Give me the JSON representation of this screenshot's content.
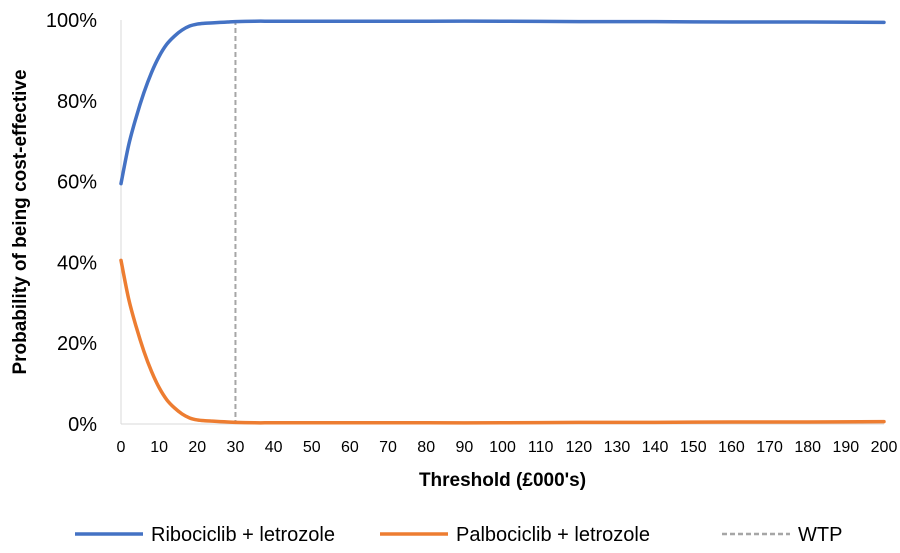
{
  "chart_data": {
    "type": "line",
    "xlabel": "Threshold (£000's)",
    "ylabel": "Probability of being cost-effective",
    "xlim": [
      0,
      200
    ],
    "ylim": [
      0,
      100
    ],
    "x_ticks": [
      0,
      10,
      20,
      30,
      40,
      50,
      60,
      70,
      80,
      90,
      100,
      110,
      120,
      130,
      140,
      150,
      160,
      170,
      180,
      190,
      200
    ],
    "x_tick_labels": [
      "0",
      "10",
      "20",
      "30",
      "40",
      "50",
      "60",
      "70",
      "80",
      "90",
      "100",
      "110",
      "120",
      "130",
      "140",
      "150",
      "160",
      "170",
      "180",
      "190",
      "200"
    ],
    "y_ticks": [
      0,
      20,
      40,
      60,
      80,
      100
    ],
    "y_tick_labels": [
      "0%",
      "20%",
      "40%",
      "60%",
      "80%",
      "100%"
    ],
    "grid": false,
    "legend_position": "bottom",
    "series": [
      {
        "name": "Ribociclib + letrozole",
        "color": "#4472C4",
        "x": [
          0,
          2,
          4,
          6,
          8,
          10,
          12,
          14,
          16,
          18,
          20,
          22,
          24,
          26,
          28,
          30,
          35,
          40,
          50,
          60,
          80,
          100,
          120,
          140,
          160,
          180,
          200
        ],
        "values": [
          59.5,
          69,
          76,
          82,
          87,
          91,
          94,
          96,
          97.5,
          98.5,
          99,
          99.2,
          99.3,
          99.4,
          99.5,
          99.6,
          99.7,
          99.7,
          99.7,
          99.7,
          99.7,
          99.7,
          99.6,
          99.6,
          99.5,
          99.5,
          99.4
        ]
      },
      {
        "name": "Palbociclib + letrozole",
        "color": "#ED7D31",
        "x": [
          0,
          2,
          4,
          6,
          8,
          10,
          12,
          14,
          16,
          18,
          20,
          22,
          24,
          26,
          28,
          30,
          35,
          40,
          50,
          60,
          80,
          100,
          120,
          140,
          160,
          180,
          200
        ],
        "values": [
          40.5,
          31,
          24,
          18,
          13,
          9,
          6,
          4,
          2.5,
          1.5,
          1,
          0.8,
          0.7,
          0.6,
          0.5,
          0.4,
          0.3,
          0.3,
          0.3,
          0.3,
          0.3,
          0.3,
          0.4,
          0.4,
          0.5,
          0.5,
          0.6
        ]
      }
    ],
    "reference_line": {
      "name": "WTP",
      "x": 30,
      "color": "#A6A6A6",
      "style": "dashed"
    }
  }
}
